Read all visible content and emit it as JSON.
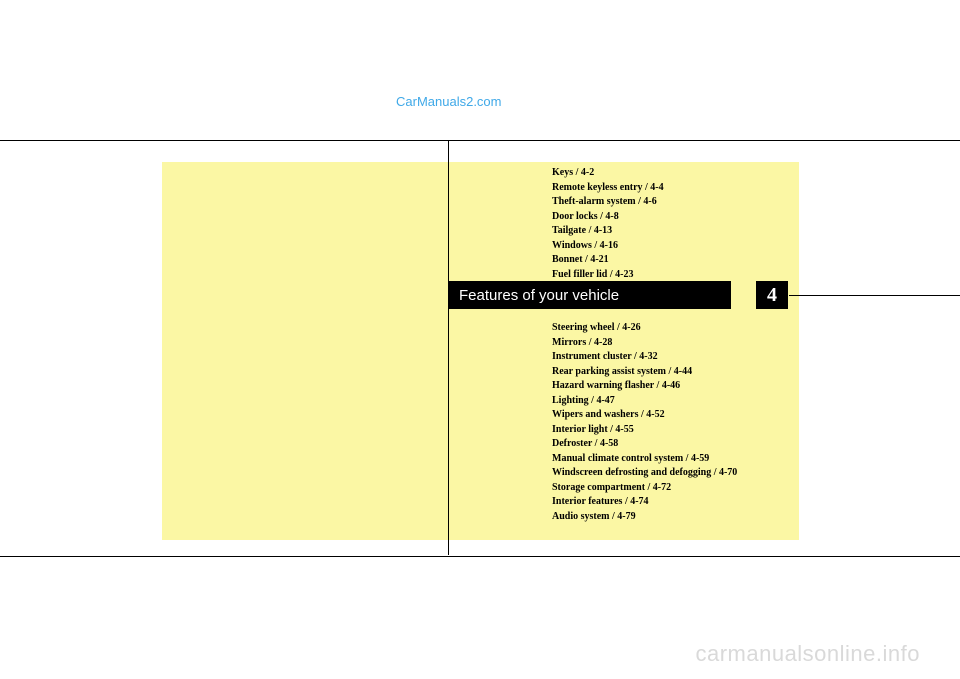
{
  "watermark_top": "CarManuals2.com",
  "watermark_bottom": "carmanualsonline.info",
  "section": {
    "title": "Features of your vehicle",
    "number": "4"
  },
  "toc_top": [
    "Keys / 4-2",
    "Remote keyless entry / 4-4",
    "Theft-alarm system / 4-6",
    "Door locks / 4-8",
    "Tailgate / 4-13",
    "Windows / 4-16",
    "Bonnet / 4-21",
    "Fuel filler lid / 4-23"
  ],
  "toc_bottom": [
    "Steering wheel / 4-26",
    "Mirrors / 4-28",
    "Instrument cluster / 4-32",
    "Rear parking assist system / 4-44",
    "Hazard warning flasher / 4-46",
    "Lighting / 4-47",
    "Wipers and washers / 4-52",
    "Interior light / 4-55",
    "Defroster / 4-58",
    "Manual climate control system / 4-59",
    "Windscreen defrosting and defogging / 4-70",
    "Storage compartment / 4-72",
    "Interior features / 4-74",
    "Audio system / 4-79"
  ],
  "colors": {
    "yellow_bg": "#fbf7a4",
    "link_blue": "#40a9e8",
    "watermark_gray": "#d9d9d9",
    "black": "#000000",
    "white": "#ffffff"
  }
}
